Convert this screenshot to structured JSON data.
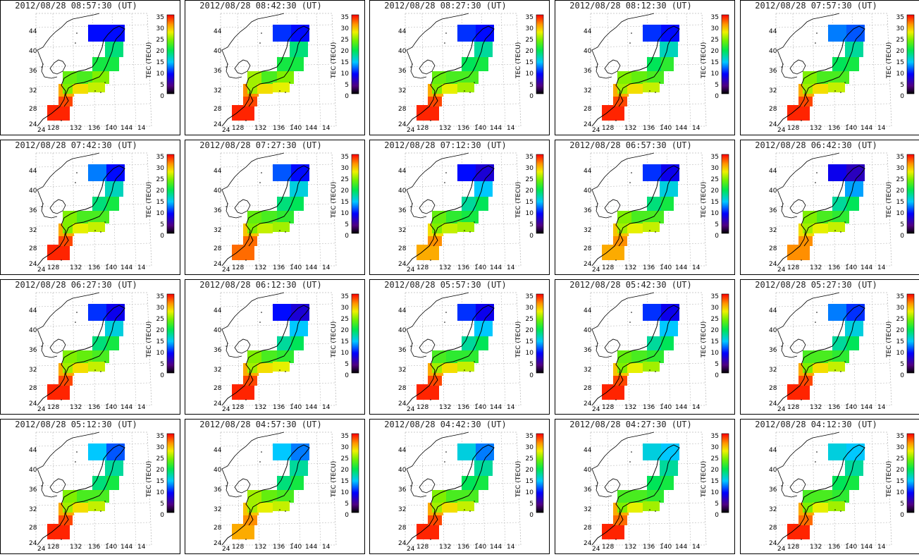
{
  "colorbar": {
    "label": "TEC (TECU)",
    "min": 0,
    "max": 35,
    "ticks": [
      "35",
      "30",
      "25",
      "20",
      "15",
      "10",
      "5",
      "0"
    ]
  },
  "map": {
    "lon_labels": [
      "128",
      "132",
      "136",
      "140",
      "144",
      "14"
    ],
    "lat_labels": [
      "44",
      "40",
      "36",
      "32",
      "28",
      "24"
    ],
    "lat_extra": "24"
  },
  "panels": [
    {
      "title": "2012/08/28 08:57:30 (UT)",
      "tec": [
        9,
        9,
        18,
        20,
        20,
        24,
        22,
        23,
        34,
        33,
        30,
        28,
        26,
        24
      ]
    },
    {
      "title": "2012/08/28 08:42:30 (UT)",
      "tec": [
        9,
        10,
        18,
        20,
        20,
        24,
        22,
        25,
        34,
        33,
        31,
        28,
        27,
        25
      ]
    },
    {
      "title": "2012/08/28 08:27:30 (UT)",
      "tec": [
        9,
        10,
        17,
        19,
        20,
        22,
        22,
        23,
        34,
        33,
        30,
        27,
        25,
        24
      ]
    },
    {
      "title": "2012/08/28 08:12:30 (UT)",
      "tec": [
        9,
        10,
        16,
        19,
        21,
        22,
        23,
        24,
        34,
        33,
        30,
        28,
        26,
        25
      ]
    },
    {
      "title": "2012/08/28 07:57:30 (UT)",
      "tec": [
        11,
        12,
        17,
        19,
        20,
        22,
        22,
        24,
        34,
        33,
        30,
        28,
        26,
        25
      ]
    },
    {
      "title": "2012/08/28 07:42:30 (UT)",
      "tec": [
        9,
        12,
        16,
        18,
        20,
        22,
        22,
        24,
        34,
        33,
        30,
        27,
        26,
        24
      ]
    },
    {
      "title": "2012/08/28 07:27:30 (UT)",
      "tec": [
        9,
        11,
        15,
        18,
        19,
        21,
        22,
        23,
        32,
        32,
        29,
        26,
        25,
        24
      ]
    },
    {
      "title": "2012/08/28 07:12:30 (UT)",
      "tec": [
        7,
        9,
        14,
        17,
        19,
        20,
        21,
        23,
        30,
        31,
        28,
        26,
        25,
        24
      ]
    },
    {
      "title": "2012/08/28 06:57:30 (UT)",
      "tec": [
        8,
        10,
        15,
        18,
        20,
        22,
        22,
        24,
        30,
        31,
        29,
        27,
        26,
        25
      ]
    },
    {
      "title": "2012/08/28 06:42:30 (UT)",
      "tec": [
        6,
        8,
        13,
        17,
        19,
        21,
        22,
        24,
        31,
        31,
        28,
        27,
        26,
        25
      ]
    },
    {
      "title": "2012/08/28 06:27:30 (UT)",
      "tec": [
        8,
        10,
        15,
        18,
        20,
        22,
        23,
        24,
        34,
        33,
        30,
        28,
        26,
        25
      ]
    },
    {
      "title": "2012/08/28 06:12:30 (UT)",
      "tec": [
        7,
        9,
        14,
        17,
        19,
        21,
        22,
        24,
        34,
        33,
        30,
        28,
        27,
        25
      ]
    },
    {
      "title": "2012/08/28 05:57:30 (UT)",
      "tec": [
        8,
        10,
        14,
        17,
        19,
        21,
        21,
        22,
        34,
        33,
        30,
        28,
        26,
        25
      ]
    },
    {
      "title": "2012/08/28 05:42:30 (UT)",
      "tec": [
        8,
        10,
        14,
        17,
        19,
        21,
        22,
        23,
        34,
        33,
        29,
        27,
        25,
        24
      ]
    },
    {
      "title": "2012/08/28 05:27:30 (UT)",
      "tec": [
        10,
        12,
        15,
        17,
        19,
        21,
        22,
        22,
        34,
        33,
        30,
        28,
        26,
        24
      ]
    },
    {
      "title": "2012/08/28 05:12:30 (UT)",
      "tec": [
        11,
        14,
        17,
        18,
        20,
        22,
        22,
        24,
        34,
        33,
        30,
        28,
        26,
        25
      ]
    },
    {
      "title": "2012/08/28 04:57:30 (UT)",
      "tec": [
        12,
        14,
        17,
        18,
        20,
        22,
        23,
        25,
        30,
        31,
        29,
        27,
        26,
        25
      ]
    },
    {
      "title": "2012/08/28 04:42:30 (UT)",
      "tec": [
        12,
        15,
        17,
        19,
        20,
        22,
        22,
        24,
        34,
        33,
        30,
        28,
        26,
        25
      ]
    },
    {
      "title": "2012/08/28 04:27:30 (UT)",
      "tec": [
        14,
        15,
        17,
        19,
        20,
        21,
        22,
        22,
        34,
        32,
        30,
        27,
        25,
        24
      ]
    },
    {
      "title": "2012/08/28 04:12:30 (UT)",
      "tec": [
        14,
        15,
        17,
        19,
        20,
        21,
        22,
        22,
        34,
        32,
        30,
        27,
        25,
        24
      ]
    }
  ]
}
